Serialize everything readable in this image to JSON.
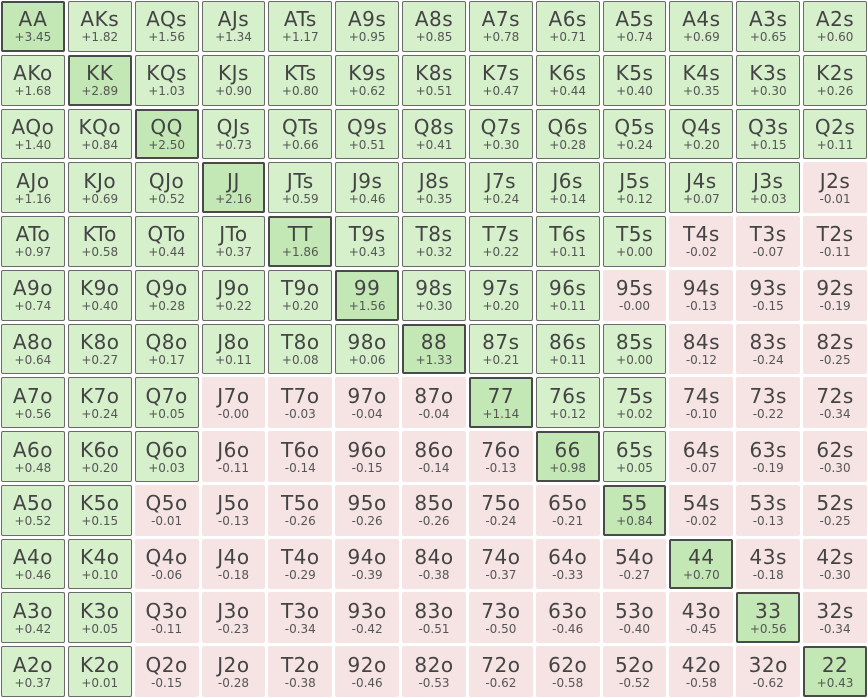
{
  "grid": {
    "cells": [
      [
        {
          "hand": "AA",
          "ev": "+3.45"
        },
        {
          "hand": "AKs",
          "ev": "+1.82"
        },
        {
          "hand": "AQs",
          "ev": "+1.56"
        },
        {
          "hand": "AJs",
          "ev": "+1.34"
        },
        {
          "hand": "ATs",
          "ev": "+1.17"
        },
        {
          "hand": "A9s",
          "ev": "+0.95"
        },
        {
          "hand": "A8s",
          "ev": "+0.85"
        },
        {
          "hand": "A7s",
          "ev": "+0.78"
        },
        {
          "hand": "A6s",
          "ev": "+0.71"
        },
        {
          "hand": "A5s",
          "ev": "+0.74"
        },
        {
          "hand": "A4s",
          "ev": "+0.69"
        },
        {
          "hand": "A3s",
          "ev": "+0.65"
        },
        {
          "hand": "A2s",
          "ev": "+0.60"
        }
      ],
      [
        {
          "hand": "AKo",
          "ev": "+1.68"
        },
        {
          "hand": "KK",
          "ev": "+2.89"
        },
        {
          "hand": "KQs",
          "ev": "+1.03"
        },
        {
          "hand": "KJs",
          "ev": "+0.90"
        },
        {
          "hand": "KTs",
          "ev": "+0.80"
        },
        {
          "hand": "K9s",
          "ev": "+0.62"
        },
        {
          "hand": "K8s",
          "ev": "+0.51"
        },
        {
          "hand": "K7s",
          "ev": "+0.47"
        },
        {
          "hand": "K6s",
          "ev": "+0.44"
        },
        {
          "hand": "K5s",
          "ev": "+0.40"
        },
        {
          "hand": "K4s",
          "ev": "+0.35"
        },
        {
          "hand": "K3s",
          "ev": "+0.30"
        },
        {
          "hand": "K2s",
          "ev": "+0.26"
        }
      ],
      [
        {
          "hand": "AQo",
          "ev": "+1.40"
        },
        {
          "hand": "KQo",
          "ev": "+0.84"
        },
        {
          "hand": "QQ",
          "ev": "+2.50"
        },
        {
          "hand": "QJs",
          "ev": "+0.73"
        },
        {
          "hand": "QTs",
          "ev": "+0.66"
        },
        {
          "hand": "Q9s",
          "ev": "+0.51"
        },
        {
          "hand": "Q8s",
          "ev": "+0.41"
        },
        {
          "hand": "Q7s",
          "ev": "+0.30"
        },
        {
          "hand": "Q6s",
          "ev": "+0.28"
        },
        {
          "hand": "Q5s",
          "ev": "+0.24"
        },
        {
          "hand": "Q4s",
          "ev": "+0.20"
        },
        {
          "hand": "Q3s",
          "ev": "+0.15"
        },
        {
          "hand": "Q2s",
          "ev": "+0.11"
        }
      ],
      [
        {
          "hand": "AJo",
          "ev": "+1.16"
        },
        {
          "hand": "KJo",
          "ev": "+0.69"
        },
        {
          "hand": "QJo",
          "ev": "+0.52"
        },
        {
          "hand": "JJ",
          "ev": "+2.16"
        },
        {
          "hand": "JTs",
          "ev": "+0.59"
        },
        {
          "hand": "J9s",
          "ev": "+0.46"
        },
        {
          "hand": "J8s",
          "ev": "+0.35"
        },
        {
          "hand": "J7s",
          "ev": "+0.24"
        },
        {
          "hand": "J6s",
          "ev": "+0.14"
        },
        {
          "hand": "J5s",
          "ev": "+0.12"
        },
        {
          "hand": "J4s",
          "ev": "+0.07"
        },
        {
          "hand": "J3s",
          "ev": "+0.03"
        },
        {
          "hand": "J2s",
          "ev": "-0.01"
        }
      ],
      [
        {
          "hand": "ATo",
          "ev": "+0.97"
        },
        {
          "hand": "KTo",
          "ev": "+0.58"
        },
        {
          "hand": "QTo",
          "ev": "+0.44"
        },
        {
          "hand": "JTo",
          "ev": "+0.37"
        },
        {
          "hand": "TT",
          "ev": "+1.86"
        },
        {
          "hand": "T9s",
          "ev": "+0.43"
        },
        {
          "hand": "T8s",
          "ev": "+0.32"
        },
        {
          "hand": "T7s",
          "ev": "+0.22"
        },
        {
          "hand": "T6s",
          "ev": "+0.11"
        },
        {
          "hand": "T5s",
          "ev": "+0.00"
        },
        {
          "hand": "T4s",
          "ev": "-0.02"
        },
        {
          "hand": "T3s",
          "ev": "-0.07"
        },
        {
          "hand": "T2s",
          "ev": "-0.11"
        }
      ],
      [
        {
          "hand": "A9o",
          "ev": "+0.74"
        },
        {
          "hand": "K9o",
          "ev": "+0.40"
        },
        {
          "hand": "Q9o",
          "ev": "+0.28"
        },
        {
          "hand": "J9o",
          "ev": "+0.22"
        },
        {
          "hand": "T9o",
          "ev": "+0.20"
        },
        {
          "hand": "99",
          "ev": "+1.56"
        },
        {
          "hand": "98s",
          "ev": "+0.30"
        },
        {
          "hand": "97s",
          "ev": "+0.20"
        },
        {
          "hand": "96s",
          "ev": "+0.11"
        },
        {
          "hand": "95s",
          "ev": "-0.00"
        },
        {
          "hand": "94s",
          "ev": "-0.13"
        },
        {
          "hand": "93s",
          "ev": "-0.15"
        },
        {
          "hand": "92s",
          "ev": "-0.19"
        }
      ],
      [
        {
          "hand": "A8o",
          "ev": "+0.64"
        },
        {
          "hand": "K8o",
          "ev": "+0.27"
        },
        {
          "hand": "Q8o",
          "ev": "+0.17"
        },
        {
          "hand": "J8o",
          "ev": "+0.11"
        },
        {
          "hand": "T8o",
          "ev": "+0.08"
        },
        {
          "hand": "98o",
          "ev": "+0.06"
        },
        {
          "hand": "88",
          "ev": "+1.33"
        },
        {
          "hand": "87s",
          "ev": "+0.21"
        },
        {
          "hand": "86s",
          "ev": "+0.11"
        },
        {
          "hand": "85s",
          "ev": "+0.00"
        },
        {
          "hand": "84s",
          "ev": "-0.12"
        },
        {
          "hand": "83s",
          "ev": "-0.24"
        },
        {
          "hand": "82s",
          "ev": "-0.25"
        }
      ],
      [
        {
          "hand": "A7o",
          "ev": "+0.56"
        },
        {
          "hand": "K7o",
          "ev": "+0.24"
        },
        {
          "hand": "Q7o",
          "ev": "+0.05"
        },
        {
          "hand": "J7o",
          "ev": "-0.00"
        },
        {
          "hand": "T7o",
          "ev": "-0.03"
        },
        {
          "hand": "97o",
          "ev": "-0.04"
        },
        {
          "hand": "87o",
          "ev": "-0.04"
        },
        {
          "hand": "77",
          "ev": "+1.14"
        },
        {
          "hand": "76s",
          "ev": "+0.12"
        },
        {
          "hand": "75s",
          "ev": "+0.02"
        },
        {
          "hand": "74s",
          "ev": "-0.10"
        },
        {
          "hand": "73s",
          "ev": "-0.22"
        },
        {
          "hand": "72s",
          "ev": "-0.34"
        }
      ],
      [
        {
          "hand": "A6o",
          "ev": "+0.48"
        },
        {
          "hand": "K6o",
          "ev": "+0.20"
        },
        {
          "hand": "Q6o",
          "ev": "+0.03"
        },
        {
          "hand": "J6o",
          "ev": "-0.11"
        },
        {
          "hand": "T6o",
          "ev": "-0.14"
        },
        {
          "hand": "96o",
          "ev": "-0.15"
        },
        {
          "hand": "86o",
          "ev": "-0.14"
        },
        {
          "hand": "76o",
          "ev": "-0.13"
        },
        {
          "hand": "66",
          "ev": "+0.98"
        },
        {
          "hand": "65s",
          "ev": "+0.05"
        },
        {
          "hand": "64s",
          "ev": "-0.07"
        },
        {
          "hand": "63s",
          "ev": "-0.19"
        },
        {
          "hand": "62s",
          "ev": "-0.30"
        }
      ],
      [
        {
          "hand": "A5o",
          "ev": "+0.52"
        },
        {
          "hand": "K5o",
          "ev": "+0.15"
        },
        {
          "hand": "Q5o",
          "ev": "-0.01"
        },
        {
          "hand": "J5o",
          "ev": "-0.13"
        },
        {
          "hand": "T5o",
          "ev": "-0.26"
        },
        {
          "hand": "95o",
          "ev": "-0.26"
        },
        {
          "hand": "85o",
          "ev": "-0.26"
        },
        {
          "hand": "75o",
          "ev": "-0.24"
        },
        {
          "hand": "65o",
          "ev": "-0.21"
        },
        {
          "hand": "55",
          "ev": "+0.84"
        },
        {
          "hand": "54s",
          "ev": "-0.02"
        },
        {
          "hand": "53s",
          "ev": "-0.13"
        },
        {
          "hand": "52s",
          "ev": "-0.25"
        }
      ],
      [
        {
          "hand": "A4o",
          "ev": "+0.46"
        },
        {
          "hand": "K4o",
          "ev": "+0.10"
        },
        {
          "hand": "Q4o",
          "ev": "-0.06"
        },
        {
          "hand": "J4o",
          "ev": "-0.18"
        },
        {
          "hand": "T4o",
          "ev": "-0.29"
        },
        {
          "hand": "94o",
          "ev": "-0.39"
        },
        {
          "hand": "84o",
          "ev": "-0.38"
        },
        {
          "hand": "74o",
          "ev": "-0.37"
        },
        {
          "hand": "64o",
          "ev": "-0.33"
        },
        {
          "hand": "54o",
          "ev": "-0.27"
        },
        {
          "hand": "44",
          "ev": "+0.70"
        },
        {
          "hand": "43s",
          "ev": "-0.18"
        },
        {
          "hand": "42s",
          "ev": "-0.30"
        }
      ],
      [
        {
          "hand": "A3o",
          "ev": "+0.42"
        },
        {
          "hand": "K3o",
          "ev": "+0.05"
        },
        {
          "hand": "Q3o",
          "ev": "-0.11"
        },
        {
          "hand": "J3o",
          "ev": "-0.23"
        },
        {
          "hand": "T3o",
          "ev": "-0.34"
        },
        {
          "hand": "93o",
          "ev": "-0.42"
        },
        {
          "hand": "83o",
          "ev": "-0.51"
        },
        {
          "hand": "73o",
          "ev": "-0.50"
        },
        {
          "hand": "63o",
          "ev": "-0.46"
        },
        {
          "hand": "53o",
          "ev": "-0.40"
        },
        {
          "hand": "43o",
          "ev": "-0.45"
        },
        {
          "hand": "33",
          "ev": "+0.56"
        },
        {
          "hand": "32s",
          "ev": "-0.34"
        }
      ],
      [
        {
          "hand": "A2o",
          "ev": "+0.37"
        },
        {
          "hand": "K2o",
          "ev": "+0.01"
        },
        {
          "hand": "Q2o",
          "ev": "-0.15"
        },
        {
          "hand": "J2o",
          "ev": "-0.28"
        },
        {
          "hand": "T2o",
          "ev": "-0.38"
        },
        {
          "hand": "92o",
          "ev": "-0.46"
        },
        {
          "hand": "82o",
          "ev": "-0.53"
        },
        {
          "hand": "72o",
          "ev": "-0.62"
        },
        {
          "hand": "62o",
          "ev": "-0.58"
        },
        {
          "hand": "52o",
          "ev": "-0.52"
        },
        {
          "hand": "42o",
          "ev": "-0.58"
        },
        {
          "hand": "32o",
          "ev": "-0.62"
        },
        {
          "hand": "22",
          "ev": "+0.43"
        }
      ]
    ]
  },
  "colors": {
    "positive_fill": "#d6f0cc",
    "pair_fill": "#c3e8b5",
    "negative_fill": "#f6e4e4",
    "text": "#444444"
  }
}
